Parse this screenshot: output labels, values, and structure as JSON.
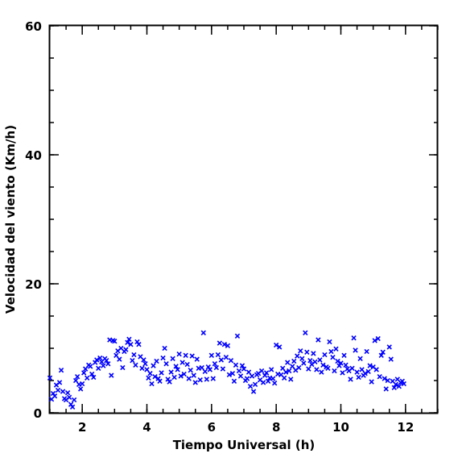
{
  "chart_data": {
    "type": "scatter",
    "xlabel": "Tiempo Universal (h)",
    "ylabel": "Velocidad del viento (Km/h)",
    "xlim": [
      1,
      13
    ],
    "ylim": [
      0,
      60
    ],
    "x_ticks": [
      2,
      4,
      6,
      8,
      10,
      12
    ],
    "y_ticks": [
      0,
      20,
      40,
      60
    ],
    "x_minor_step": 0.5,
    "y_minor_step": 5,
    "marker": "x",
    "marker_color": "#0000ff",
    "grid": false,
    "series": [
      {
        "points": [
          [
            1.0,
            5.4
          ],
          [
            1.05,
            2.1
          ],
          [
            1.1,
            3.0
          ],
          [
            1.15,
            2.6
          ],
          [
            1.2,
            4.3
          ],
          [
            1.25,
            3.5
          ],
          [
            1.3,
            4.7
          ],
          [
            1.35,
            6.6
          ],
          [
            1.4,
            3.3
          ],
          [
            1.45,
            2.2
          ],
          [
            1.5,
            2.0
          ],
          [
            1.55,
            3.1
          ],
          [
            1.6,
            2.4
          ],
          [
            1.65,
            1.3
          ],
          [
            1.7,
            0.9
          ],
          [
            1.75,
            2.0
          ],
          [
            1.8,
            5.0
          ],
          [
            1.85,
            5.6
          ],
          [
            1.9,
            4.4
          ],
          [
            1.95,
            3.7
          ],
          [
            2.0,
            4.5
          ],
          [
            2.05,
            6.2
          ],
          [
            2.1,
            6.8
          ],
          [
            2.15,
            5.4
          ],
          [
            2.2,
            7.4
          ],
          [
            2.25,
            7.2
          ],
          [
            2.3,
            6.0
          ],
          [
            2.35,
            5.5
          ],
          [
            2.4,
            7.8
          ],
          [
            2.45,
            8.2
          ],
          [
            2.5,
            6.9
          ],
          [
            2.55,
            8.5
          ],
          [
            2.6,
            7.9
          ],
          [
            2.65,
            7.3
          ],
          [
            2.7,
            8.4
          ],
          [
            2.75,
            8.1
          ],
          [
            2.8,
            7.6
          ],
          [
            2.85,
            11.3
          ],
          [
            2.9,
            5.8
          ],
          [
            2.95,
            11.2
          ],
          [
            3.0,
            11.1
          ],
          [
            3.05,
            8.9
          ],
          [
            3.1,
            9.6
          ],
          [
            3.15,
            8.3
          ],
          [
            3.2,
            10.0
          ],
          [
            3.25,
            7.0
          ],
          [
            3.3,
            9.5
          ],
          [
            3.35,
            9.8
          ],
          [
            3.4,
            10.9
          ],
          [
            3.45,
            11.4
          ],
          [
            3.5,
            10.6
          ],
          [
            3.55,
            8.1
          ],
          [
            3.6,
            9.0
          ],
          [
            3.65,
            7.4
          ],
          [
            3.7,
            11.0
          ],
          [
            3.75,
            10.6
          ],
          [
            3.8,
            8.7
          ],
          [
            3.85,
            6.9
          ],
          [
            3.9,
            8.2
          ],
          [
            3.95,
            7.6
          ],
          [
            4.0,
            6.7
          ],
          [
            4.05,
            5.4
          ],
          [
            4.1,
            6.1
          ],
          [
            4.15,
            4.5
          ],
          [
            4.2,
            7.3
          ],
          [
            4.25,
            5.6
          ],
          [
            4.3,
            8.0
          ],
          [
            4.35,
            5.3
          ],
          [
            4.4,
            4.9
          ],
          [
            4.45,
            6.2
          ],
          [
            4.5,
            8.5
          ],
          [
            4.55,
            10.0
          ],
          [
            4.6,
            7.6
          ],
          [
            4.65,
            5.2
          ],
          [
            4.7,
            4.8
          ],
          [
            4.75,
            6.3
          ],
          [
            4.8,
            8.4
          ],
          [
            4.85,
            5.5
          ],
          [
            4.9,
            7.2
          ],
          [
            4.95,
            6.7
          ],
          [
            5.0,
            9.1
          ],
          [
            5.05,
            5.7
          ],
          [
            5.1,
            7.8
          ],
          [
            5.15,
            6.0
          ],
          [
            5.2,
            8.9
          ],
          [
            5.25,
            7.5
          ],
          [
            5.3,
            5.3
          ],
          [
            5.35,
            6.6
          ],
          [
            5.4,
            8.8
          ],
          [
            5.45,
            5.8
          ],
          [
            5.5,
            4.7
          ],
          [
            5.55,
            8.3
          ],
          [
            5.6,
            6.9
          ],
          [
            5.65,
            5.1
          ],
          [
            5.7,
            7.0
          ],
          [
            5.75,
            12.4
          ],
          [
            5.8,
            6.4
          ],
          [
            5.85,
            5.2
          ],
          [
            5.9,
            7.1
          ],
          [
            5.95,
            6.7
          ],
          [
            6.0,
            8.9
          ],
          [
            6.05,
            5.3
          ],
          [
            6.1,
            7.6
          ],
          [
            6.15,
            7.0
          ],
          [
            6.2,
            9.0
          ],
          [
            6.25,
            10.8
          ],
          [
            6.3,
            8.2
          ],
          [
            6.35,
            6.8
          ],
          [
            6.4,
            10.6
          ],
          [
            6.45,
            8.6
          ],
          [
            6.5,
            10.4
          ],
          [
            6.55,
            5.9
          ],
          [
            6.6,
            8.1
          ],
          [
            6.65,
            6.1
          ],
          [
            6.7,
            4.9
          ],
          [
            6.75,
            7.4
          ],
          [
            6.8,
            11.9
          ],
          [
            6.85,
            6.5
          ],
          [
            6.9,
            5.7
          ],
          [
            6.95,
            7.3
          ],
          [
            7.0,
            6.8
          ],
          [
            7.05,
            5.0
          ],
          [
            7.1,
            5.3
          ],
          [
            7.15,
            6.3
          ],
          [
            7.2,
            4.1
          ],
          [
            7.25,
            5.7
          ],
          [
            7.3,
            3.3
          ],
          [
            7.35,
            4.4
          ],
          [
            7.4,
            5.9
          ],
          [
            7.45,
            6.1
          ],
          [
            7.5,
            5.1
          ],
          [
            7.55,
            6.5
          ],
          [
            7.6,
            4.7
          ],
          [
            7.65,
            5.8
          ],
          [
            7.7,
            6.2
          ],
          [
            7.75,
            4.9
          ],
          [
            7.8,
            5.4
          ],
          [
            7.85,
            6.7
          ],
          [
            7.9,
            5.3
          ],
          [
            7.95,
            4.6
          ],
          [
            8.0,
            10.5
          ],
          [
            8.05,
            6.0
          ],
          [
            8.1,
            10.2
          ],
          [
            8.15,
            5.9
          ],
          [
            8.2,
            6.9
          ],
          [
            8.25,
            5.4
          ],
          [
            8.3,
            6.3
          ],
          [
            8.35,
            7.8
          ],
          [
            8.4,
            6.5
          ],
          [
            8.45,
            5.2
          ],
          [
            8.5,
            7.2
          ],
          [
            8.55,
            8.0
          ],
          [
            8.6,
            6.6
          ],
          [
            8.65,
            8.8
          ],
          [
            8.7,
            7.0
          ],
          [
            8.75,
            9.6
          ],
          [
            8.8,
            8.4
          ],
          [
            8.85,
            7.7
          ],
          [
            8.9,
            12.4
          ],
          [
            8.95,
            9.4
          ],
          [
            9.0,
            6.8
          ],
          [
            9.05,
            8.1
          ],
          [
            9.1,
            7.5
          ],
          [
            9.15,
            9.2
          ],
          [
            9.2,
            7.9
          ],
          [
            9.25,
            6.7
          ],
          [
            9.3,
            11.3
          ],
          [
            9.35,
            8.2
          ],
          [
            9.4,
            6.3
          ],
          [
            9.45,
            7.4
          ],
          [
            9.5,
            9.0
          ],
          [
            9.55,
            7.1
          ],
          [
            9.6,
            6.9
          ],
          [
            9.65,
            11.0
          ],
          [
            9.7,
            9.5
          ],
          [
            9.75,
            8.6
          ],
          [
            9.8,
            6.5
          ],
          [
            9.85,
            9.9
          ],
          [
            9.9,
            8.0
          ],
          [
            9.95,
            7.3
          ],
          [
            10.0,
            7.7
          ],
          [
            10.05,
            6.2
          ],
          [
            10.1,
            8.9
          ],
          [
            10.15,
            7.4
          ],
          [
            10.2,
            6.8
          ],
          [
            10.25,
            6.5
          ],
          [
            10.3,
            5.2
          ],
          [
            10.35,
            6.9
          ],
          [
            10.4,
            11.6
          ],
          [
            10.45,
            9.7
          ],
          [
            10.5,
            6.3
          ],
          [
            10.55,
            5.5
          ],
          [
            10.6,
            8.4
          ],
          [
            10.65,
            6.7
          ],
          [
            10.7,
            5.8
          ],
          [
            10.75,
            6.1
          ],
          [
            10.8,
            9.5
          ],
          [
            10.85,
            6.4
          ],
          [
            10.9,
            7.3
          ],
          [
            10.95,
            4.8
          ],
          [
            11.0,
            7.1
          ],
          [
            11.05,
            11.2
          ],
          [
            11.1,
            6.7
          ],
          [
            11.15,
            11.5
          ],
          [
            11.2,
            5.6
          ],
          [
            11.25,
            8.9
          ],
          [
            11.3,
            9.4
          ],
          [
            11.35,
            5.3
          ],
          [
            11.4,
            3.7
          ],
          [
            11.45,
            5.0
          ],
          [
            11.5,
            10.2
          ],
          [
            11.55,
            8.3
          ],
          [
            11.6,
            4.9
          ],
          [
            11.65,
            3.9
          ],
          [
            11.7,
            4.4
          ],
          [
            11.75,
            5.2
          ],
          [
            11.8,
            4.1
          ],
          [
            11.85,
            4.7
          ],
          [
            11.9,
            4.9
          ],
          [
            11.95,
            4.5
          ]
        ]
      }
    ]
  }
}
